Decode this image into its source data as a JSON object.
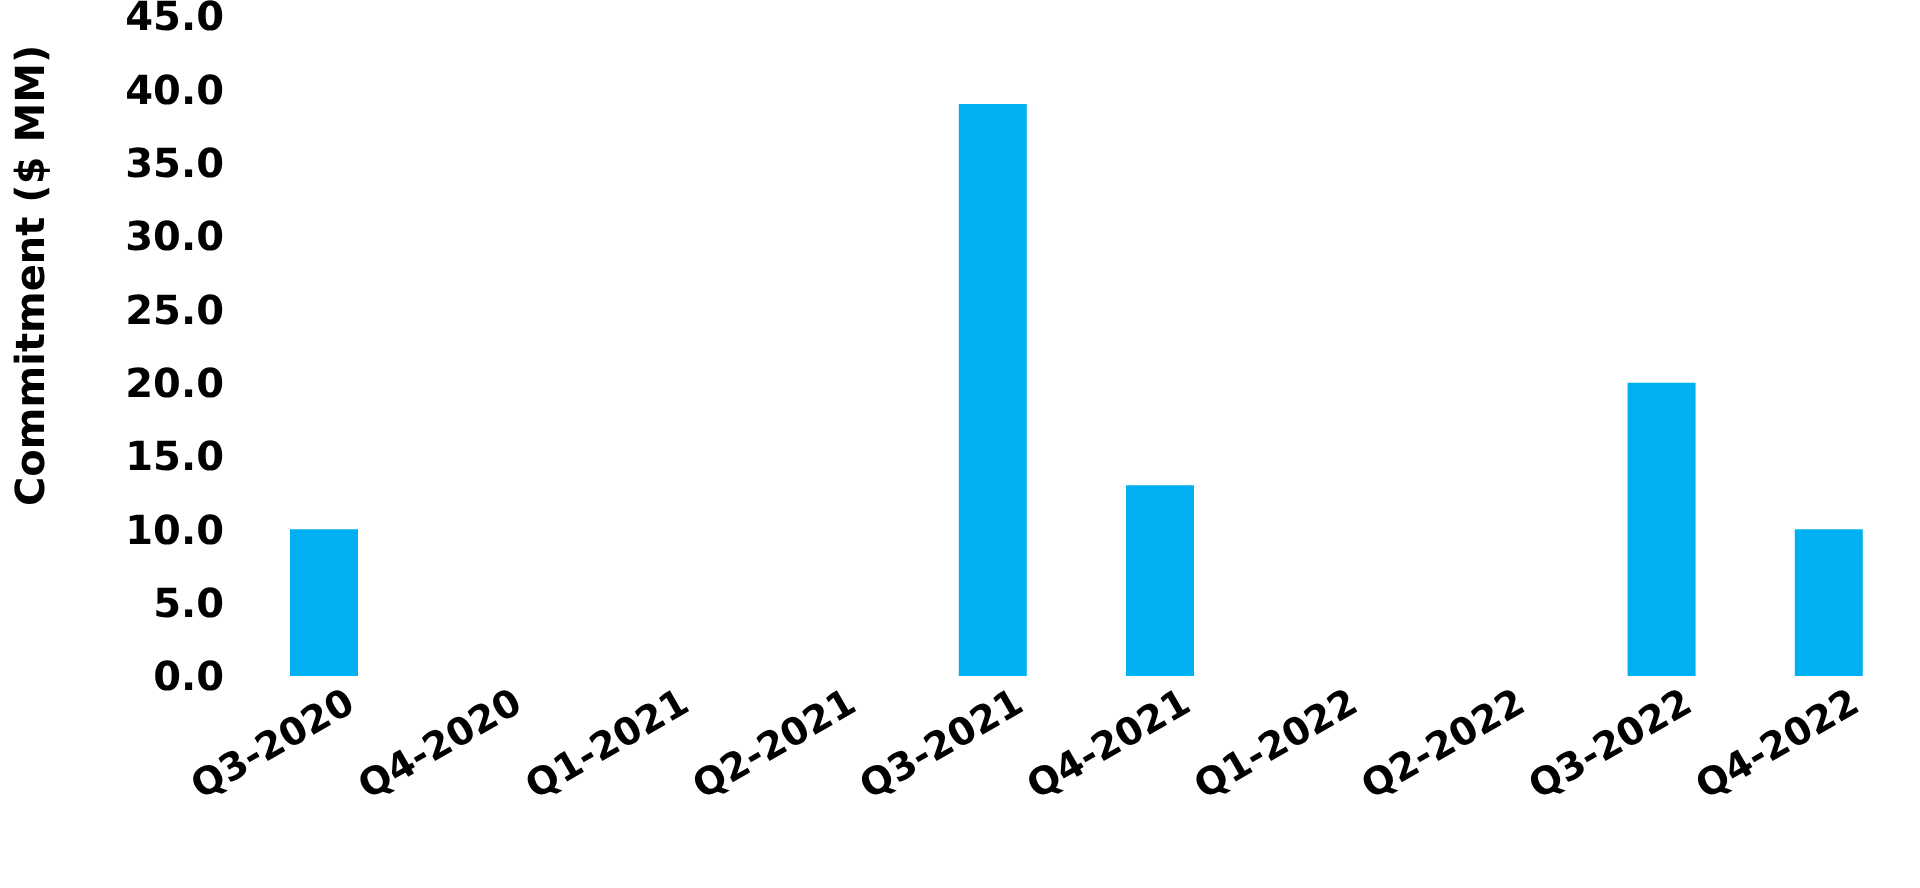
{
  "chart_data": {
    "type": "bar",
    "ylabel": "Commitment ($ MM)",
    "categories": [
      "Q3-2020",
      "Q4-2020",
      "Q1-2021",
      "Q2-2021",
      "Q3-2021",
      "Q4-2021",
      "Q1-2022",
      "Q2-2022",
      "Q3-2022",
      "Q4-2022"
    ],
    "values": [
      10,
      0,
      0,
      0,
      39,
      13,
      0,
      0,
      20,
      10
    ],
    "color": "#00b0f0",
    "ylim": [
      0,
      45
    ],
    "yticks": [
      {
        "value": 0,
        "label": "0.0"
      },
      {
        "value": 5,
        "label": "5.0"
      },
      {
        "value": 10,
        "label": "10.0"
      },
      {
        "value": 15,
        "label": "15.0"
      },
      {
        "value": 20,
        "label": "20.0"
      },
      {
        "value": 25,
        "label": "25.0"
      },
      {
        "value": 30,
        "label": "30.0"
      },
      {
        "value": 35,
        "label": "35.0"
      },
      {
        "value": 40,
        "label": "40.0"
      },
      {
        "value": 45,
        "label": "45.0"
      }
    ],
    "grid": false,
    "legend": false
  }
}
